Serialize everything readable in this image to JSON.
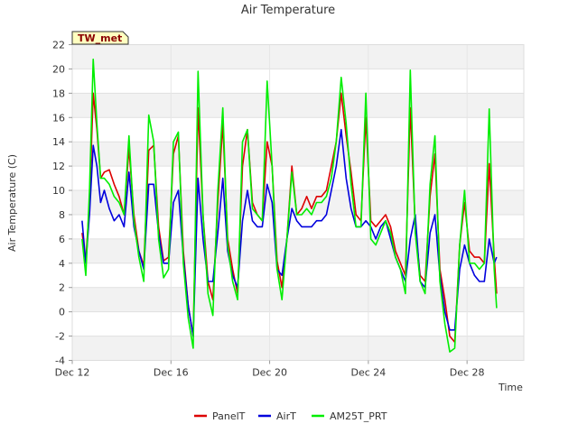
{
  "chart_data": {
    "type": "line",
    "title": "Air Temperature",
    "xlabel": "Time",
    "ylabel": "Air Temperature (C)",
    "badge": "TW_met",
    "xlim": [
      12,
      30.3
    ],
    "ylim": [
      -4,
      22
    ],
    "yticks": [
      -4,
      -2,
      0,
      2,
      4,
      6,
      8,
      10,
      12,
      14,
      16,
      18,
      20,
      22
    ],
    "xticks": [
      {
        "label": "Dec 12",
        "value": 12
      },
      {
        "label": "Dec 16",
        "value": 16
      },
      {
        "label": "Dec 20",
        "value": 20
      },
      {
        "label": "Dec 24",
        "value": 24
      },
      {
        "label": "Dec 28",
        "value": 28
      }
    ],
    "grid": true,
    "legend_position": "bottom-center",
    "series": [
      {
        "name": "PanelT",
        "color": "#dd0000",
        "points": [
          [
            12.4,
            6.5
          ],
          [
            12.55,
            4.2
          ],
          [
            12.7,
            9
          ],
          [
            12.85,
            18
          ],
          [
            13.0,
            15
          ],
          [
            13.15,
            11
          ],
          [
            13.3,
            11.5
          ],
          [
            13.5,
            11.7
          ],
          [
            13.7,
            10.5
          ],
          [
            13.9,
            9.5
          ],
          [
            14.1,
            8
          ],
          [
            14.3,
            13.5
          ],
          [
            14.5,
            8
          ],
          [
            14.7,
            5
          ],
          [
            14.9,
            3.8
          ],
          [
            15.1,
            13.3
          ],
          [
            15.3,
            13.7
          ],
          [
            15.5,
            7
          ],
          [
            15.7,
            4.2
          ],
          [
            15.9,
            4.5
          ],
          [
            16.1,
            13
          ],
          [
            16.3,
            14.5
          ],
          [
            16.5,
            5
          ],
          [
            16.7,
            0.5
          ],
          [
            16.9,
            -2
          ],
          [
            17.1,
            16.8
          ],
          [
            17.3,
            8
          ],
          [
            17.5,
            2.5
          ],
          [
            17.7,
            1
          ],
          [
            17.9,
            9
          ],
          [
            18.1,
            15.5
          ],
          [
            18.3,
            6
          ],
          [
            18.5,
            3.5
          ],
          [
            18.7,
            1.5
          ],
          [
            18.9,
            12
          ],
          [
            19.1,
            15
          ],
          [
            19.3,
            9
          ],
          [
            19.5,
            8
          ],
          [
            19.7,
            7.5
          ],
          [
            19.9,
            14
          ],
          [
            20.1,
            12
          ],
          [
            20.3,
            4.2
          ],
          [
            20.5,
            2
          ],
          [
            20.7,
            6
          ],
          [
            20.9,
            12
          ],
          [
            21.1,
            8
          ],
          [
            21.3,
            8.5
          ],
          [
            21.5,
            9.5
          ],
          [
            21.7,
            8.5
          ],
          [
            21.9,
            9.5
          ],
          [
            22.1,
            9.5
          ],
          [
            22.3,
            10
          ],
          [
            22.5,
            12
          ],
          [
            22.7,
            14
          ],
          [
            22.9,
            18
          ],
          [
            23.1,
            14.5
          ],
          [
            23.3,
            11.5
          ],
          [
            23.5,
            8
          ],
          [
            23.7,
            7.5
          ],
          [
            23.9,
            16
          ],
          [
            24.1,
            7.5
          ],
          [
            24.3,
            7
          ],
          [
            24.5,
            7.5
          ],
          [
            24.7,
            8
          ],
          [
            24.9,
            7
          ],
          [
            25.1,
            5
          ],
          [
            25.3,
            4
          ],
          [
            25.5,
            3
          ],
          [
            25.7,
            16.8
          ],
          [
            25.9,
            7
          ],
          [
            26.1,
            3
          ],
          [
            26.3,
            2.5
          ],
          [
            26.5,
            9.5
          ],
          [
            26.7,
            13
          ],
          [
            26.9,
            3.5
          ],
          [
            27.1,
            1
          ],
          [
            27.3,
            -2
          ],
          [
            27.5,
            -2.5
          ],
          [
            27.7,
            5.5
          ],
          [
            27.9,
            9
          ],
          [
            28.1,
            5
          ],
          [
            28.3,
            4.5
          ],
          [
            28.5,
            4.5
          ],
          [
            28.7,
            4
          ],
          [
            28.9,
            12.2
          ],
          [
            29.1,
            4.5
          ],
          [
            29.2,
            1.5
          ]
        ]
      },
      {
        "name": "AirT",
        "color": "#0000dd",
        "points": [
          [
            12.4,
            7.5
          ],
          [
            12.55,
            4
          ],
          [
            12.7,
            8
          ],
          [
            12.85,
            13.7
          ],
          [
            13.0,
            12
          ],
          [
            13.15,
            9
          ],
          [
            13.3,
            10
          ],
          [
            13.5,
            8.5
          ],
          [
            13.7,
            7.5
          ],
          [
            13.9,
            8
          ],
          [
            14.1,
            7
          ],
          [
            14.3,
            11.5
          ],
          [
            14.5,
            7
          ],
          [
            14.7,
            5
          ],
          [
            14.9,
            3.5
          ],
          [
            15.1,
            10.5
          ],
          [
            15.3,
            10.5
          ],
          [
            15.5,
            6.5
          ],
          [
            15.7,
            4
          ],
          [
            15.9,
            4
          ],
          [
            16.1,
            9
          ],
          [
            16.3,
            10
          ],
          [
            16.5,
            4.5
          ],
          [
            16.7,
            0.5
          ],
          [
            16.9,
            -2
          ],
          [
            17.1,
            11
          ],
          [
            17.3,
            6
          ],
          [
            17.5,
            2.5
          ],
          [
            17.7,
            2.5
          ],
          [
            17.9,
            6.5
          ],
          [
            18.1,
            11
          ],
          [
            18.3,
            5
          ],
          [
            18.5,
            3
          ],
          [
            18.7,
            2
          ],
          [
            18.9,
            7.5
          ],
          [
            19.1,
            10
          ],
          [
            19.3,
            7.5
          ],
          [
            19.5,
            7
          ],
          [
            19.7,
            7
          ],
          [
            19.9,
            10.5
          ],
          [
            20.1,
            9
          ],
          [
            20.3,
            3.5
          ],
          [
            20.5,
            3
          ],
          [
            20.7,
            6
          ],
          [
            20.9,
            8.5
          ],
          [
            21.1,
            7.5
          ],
          [
            21.3,
            7
          ],
          [
            21.5,
            7
          ],
          [
            21.7,
            7
          ],
          [
            21.9,
            7.5
          ],
          [
            22.1,
            7.5
          ],
          [
            22.3,
            8
          ],
          [
            22.5,
            10
          ],
          [
            22.7,
            12
          ],
          [
            22.9,
            15
          ],
          [
            23.1,
            11
          ],
          [
            23.3,
            8.5
          ],
          [
            23.5,
            7
          ],
          [
            23.7,
            7
          ],
          [
            23.9,
            7.5
          ],
          [
            24.1,
            7
          ],
          [
            24.3,
            6
          ],
          [
            24.5,
            7
          ],
          [
            24.7,
            7.5
          ],
          [
            24.9,
            6
          ],
          [
            25.1,
            4.5
          ],
          [
            25.3,
            3.5
          ],
          [
            25.5,
            2.5
          ],
          [
            25.7,
            6
          ],
          [
            25.9,
            8
          ],
          [
            26.1,
            2.5
          ],
          [
            26.3,
            2
          ],
          [
            26.5,
            6.5
          ],
          [
            26.7,
            8
          ],
          [
            26.9,
            3
          ],
          [
            27.1,
            0
          ],
          [
            27.3,
            -1.5
          ],
          [
            27.5,
            -1.5
          ],
          [
            27.7,
            3.5
          ],
          [
            27.9,
            5.5
          ],
          [
            28.1,
            4
          ],
          [
            28.3,
            3
          ],
          [
            28.5,
            2.5
          ],
          [
            28.7,
            2.5
          ],
          [
            28.9,
            6
          ],
          [
            29.1,
            4
          ],
          [
            29.2,
            4.5
          ]
        ]
      },
      {
        "name": "AM25T_PRT",
        "color": "#00ee00",
        "points": [
          [
            12.4,
            6
          ],
          [
            12.55,
            3
          ],
          [
            12.7,
            10
          ],
          [
            12.85,
            20.8
          ],
          [
            13.0,
            15.5
          ],
          [
            13.15,
            11
          ],
          [
            13.3,
            11
          ],
          [
            13.5,
            10.5
          ],
          [
            13.7,
            9.5
          ],
          [
            13.9,
            9
          ],
          [
            14.1,
            8
          ],
          [
            14.3,
            14.5
          ],
          [
            14.5,
            7.5
          ],
          [
            14.7,
            4.5
          ],
          [
            14.9,
            2.5
          ],
          [
            15.1,
            16.2
          ],
          [
            15.3,
            14
          ],
          [
            15.5,
            6
          ],
          [
            15.7,
            2.8
          ],
          [
            15.9,
            3.5
          ],
          [
            16.1,
            14
          ],
          [
            16.3,
            14.8
          ],
          [
            16.5,
            4
          ],
          [
            16.7,
            -0.5
          ],
          [
            16.9,
            -3
          ],
          [
            17.1,
            19.8
          ],
          [
            17.3,
            8
          ],
          [
            17.5,
            1.5
          ],
          [
            17.7,
            -0.3
          ],
          [
            17.9,
            10
          ],
          [
            18.1,
            16.8
          ],
          [
            18.3,
            5.5
          ],
          [
            18.5,
            2.5
          ],
          [
            18.7,
            1
          ],
          [
            18.9,
            14
          ],
          [
            19.1,
            15
          ],
          [
            19.3,
            8.5
          ],
          [
            19.5,
            8
          ],
          [
            19.7,
            7.5
          ],
          [
            19.9,
            19
          ],
          [
            20.1,
            12
          ],
          [
            20.3,
            3.5
          ],
          [
            20.5,
            1
          ],
          [
            20.7,
            6
          ],
          [
            20.9,
            11.5
          ],
          [
            21.1,
            8
          ],
          [
            21.3,
            8
          ],
          [
            21.5,
            8.5
          ],
          [
            21.7,
            8
          ],
          [
            21.9,
            9
          ],
          [
            22.1,
            9
          ],
          [
            22.3,
            9.5
          ],
          [
            22.5,
            11
          ],
          [
            22.7,
            14
          ],
          [
            22.9,
            19.3
          ],
          [
            23.1,
            15.5
          ],
          [
            23.3,
            10.5
          ],
          [
            23.5,
            7
          ],
          [
            23.7,
            7
          ],
          [
            23.9,
            18
          ],
          [
            24.1,
            6
          ],
          [
            24.3,
            5.5
          ],
          [
            24.5,
            6.5
          ],
          [
            24.7,
            7.5
          ],
          [
            24.9,
            6.5
          ],
          [
            25.1,
            4.5
          ],
          [
            25.3,
            3.5
          ],
          [
            25.5,
            1.5
          ],
          [
            25.7,
            19.9
          ],
          [
            25.9,
            6.5
          ],
          [
            26.1,
            2.5
          ],
          [
            26.3,
            1.5
          ],
          [
            26.5,
            10.5
          ],
          [
            26.7,
            14.5
          ],
          [
            26.9,
            2.5
          ],
          [
            27.1,
            -1
          ],
          [
            27.3,
            -3.3
          ],
          [
            27.5,
            -3
          ],
          [
            27.7,
            5.5
          ],
          [
            27.9,
            10
          ],
          [
            28.1,
            4
          ],
          [
            28.3,
            4
          ],
          [
            28.5,
            3.5
          ],
          [
            28.7,
            4
          ],
          [
            28.9,
            16.7
          ],
          [
            29.1,
            3.5
          ],
          [
            29.2,
            0.3
          ]
        ]
      }
    ]
  }
}
